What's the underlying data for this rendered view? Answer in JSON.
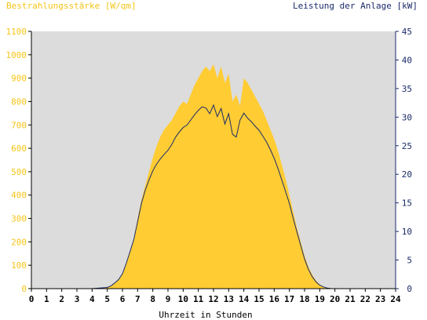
{
  "chart_data": {
    "type": "area",
    "title": "",
    "xlabel": "Uhrzeit in Stunden",
    "ylabel_left": "Bestrahlungsstärke [W/qm]",
    "ylabel_right": "Leistung der Anlage [kW]",
    "xlim": [
      0,
      24
    ],
    "ylim_left": [
      0,
      1100
    ],
    "ylim_right": [
      0,
      45
    ],
    "x_ticks": [
      "0",
      "1",
      "2",
      "3",
      "4",
      "5",
      "6",
      "7",
      "8",
      "9",
      "10",
      "11",
      "12",
      "13",
      "14",
      "15",
      "16",
      "17",
      "18",
      "19",
      "20",
      "21",
      "22",
      "23",
      "24"
    ],
    "y_left_ticks": [
      "0",
      "100",
      "200",
      "300",
      "400",
      "500",
      "600",
      "700",
      "800",
      "900",
      "1000",
      "1100"
    ],
    "y_right_ticks": [
      "0",
      "5",
      "10",
      "15",
      "20",
      "25",
      "30",
      "35",
      "40",
      "45"
    ],
    "grid": false,
    "colors": {
      "plot_background": "#dcdcdc",
      "irradiance_fill": "#ffcc33",
      "power_line": "#1a2a6a",
      "left_axis_text": "#f5c518",
      "right_axis_text": "#1a2a6a"
    },
    "series": [
      {
        "name": "Bestrahlungsstärke [W/qm]",
        "axis": "left",
        "render": "area",
        "x": [
          0,
          2,
          4,
          5,
          5.25,
          5.5,
          5.75,
          6,
          6.25,
          6.5,
          6.75,
          7,
          7.25,
          7.5,
          7.75,
          8,
          8.25,
          8.5,
          8.75,
          9,
          9.25,
          9.5,
          9.75,
          10,
          10.25,
          10.5,
          10.75,
          11,
          11.25,
          11.5,
          11.75,
          12,
          12.25,
          12.5,
          12.75,
          13,
          13.25,
          13.5,
          13.75,
          14,
          14.25,
          14.5,
          14.75,
          15,
          15.25,
          15.5,
          15.75,
          16,
          16.25,
          16.5,
          16.75,
          17,
          17.25,
          17.5,
          17.75,
          18,
          18.25,
          18.5,
          18.75,
          19,
          19.25,
          19.5,
          19.75,
          20,
          20.25,
          21,
          24
        ],
        "y": [
          0,
          0,
          0,
          5,
          12,
          25,
          40,
          65,
          110,
          160,
          215,
          300,
          380,
          440,
          500,
          560,
          610,
          650,
          680,
          700,
          720,
          750,
          780,
          800,
          790,
          830,
          870,
          900,
          930,
          950,
          930,
          960,
          900,
          950,
          880,
          920,
          800,
          830,
          780,
          900,
          880,
          850,
          820,
          790,
          760,
          720,
          680,
          640,
          590,
          530,
          470,
          400,
          330,
          260,
          200,
          140,
          95,
          60,
          35,
          18,
          8,
          3,
          1,
          0,
          0,
          0,
          0
        ]
      },
      {
        "name": "Leistung der Anlage [kW]",
        "axis": "right",
        "render": "line",
        "x": [
          0,
          4,
          5,
          5.25,
          5.5,
          5.75,
          6,
          6.25,
          6.5,
          6.75,
          7,
          7.25,
          7.5,
          7.75,
          8,
          8.25,
          8.5,
          8.75,
          9,
          9.25,
          9.5,
          9.75,
          10,
          10.25,
          10.5,
          10.75,
          11,
          11.25,
          11.5,
          11.75,
          12,
          12.25,
          12.5,
          12.75,
          13,
          13.25,
          13.5,
          13.75,
          14,
          14.25,
          14.5,
          14.75,
          15,
          15.25,
          15.5,
          15.75,
          16,
          16.25,
          16.5,
          16.75,
          17,
          17.25,
          17.5,
          17.75,
          18,
          18.25,
          18.5,
          18.75,
          19,
          19.25,
          19.5,
          19.75,
          20,
          24
        ],
        "y": [
          0,
          0,
          0.2,
          0.5,
          1,
          1.6,
          2.6,
          4.4,
          6.5,
          8.6,
          11.7,
          14.9,
          17.2,
          19,
          20.6,
          21.8,
          22.7,
          23.5,
          24.2,
          25.2,
          26.5,
          27.4,
          28.2,
          28.6,
          29.5,
          30.4,
          31.2,
          31.8,
          31.6,
          30.6,
          32.1,
          30.1,
          31.5,
          28.8,
          30.6,
          27,
          26.5,
          29.5,
          30.7,
          29.8,
          29.2,
          28.4,
          27.7,
          26.7,
          25.6,
          24.3,
          22.8,
          21,
          19,
          17,
          14.9,
          12.3,
          9.9,
          7.5,
          5.2,
          3.4,
          2.1,
          1.2,
          0.6,
          0.3,
          0.1,
          0,
          0,
          0
        ]
      }
    ]
  }
}
